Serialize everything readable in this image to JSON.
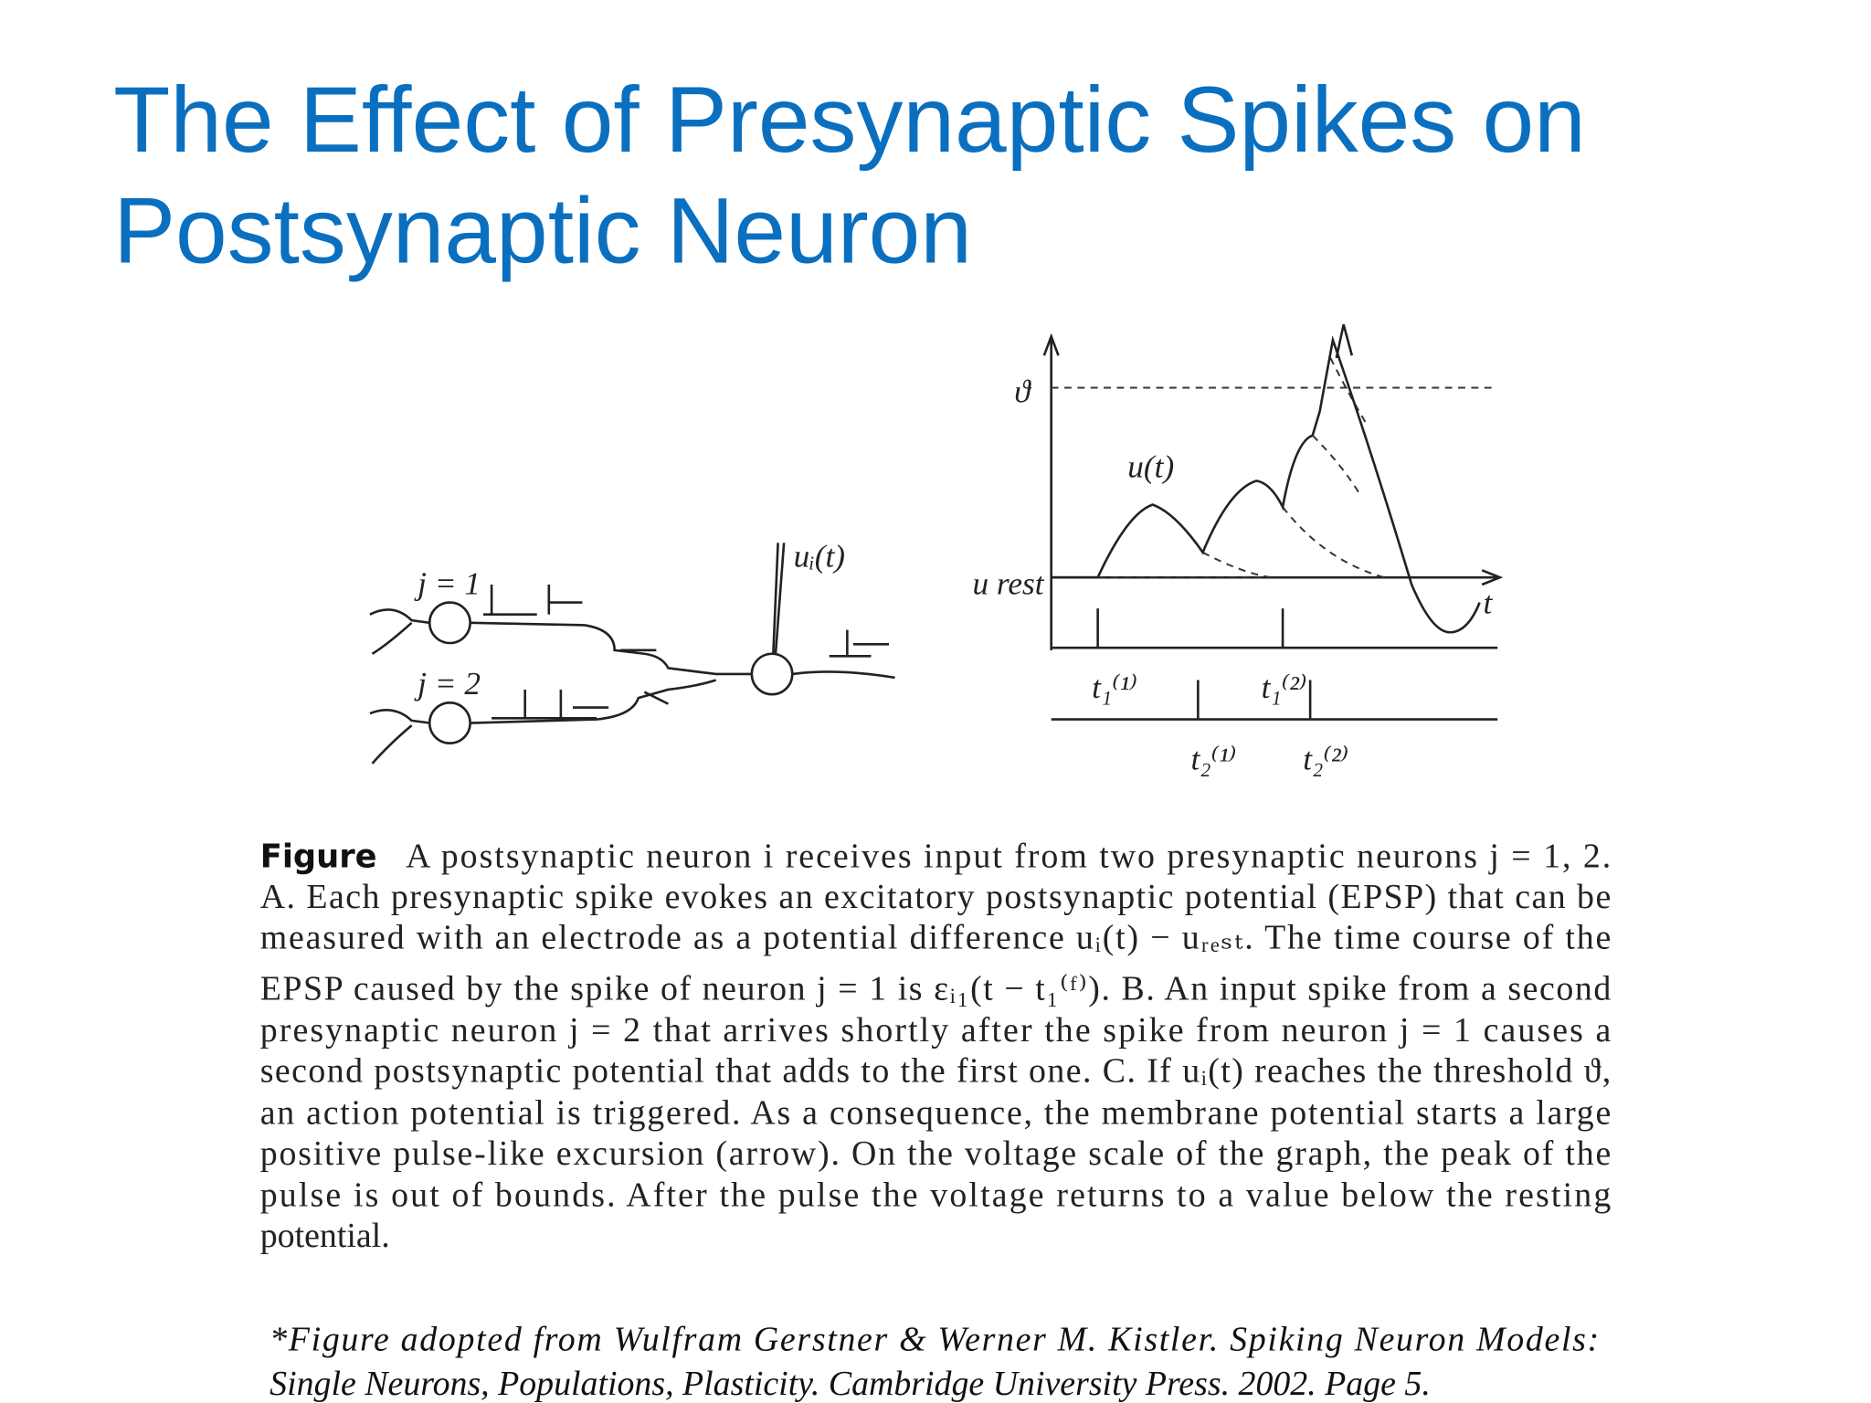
{
  "header": {
    "title_lines": [
      "The Effect of Presynaptic Spikes on",
      "Postsynaptic Neuron"
    ]
  },
  "figure": {
    "labels": {
      "j1": "j = 1",
      "j2": "j = 2",
      "electrode": "uᵢ(t)",
      "threshold": "ϑ",
      "potential": "u(t)",
      "rest": "u rest",
      "time": "t",
      "t11": "t₁⁽¹⁾",
      "t12": "t₁⁽²⁾",
      "t21": "t₂⁽¹⁾",
      "t22": "t₂⁽²⁾"
    }
  },
  "caption": {
    "label": "Figure",
    "lines": [
      "A postsynaptic neuron i receives input from two presynaptic neurons j = 1, 2.",
      "A. Each presynaptic spike evokes an excitatory postsynaptic potential (EPSP) that can be",
      "measured with an electrode as a potential difference uᵢ(t) − uᵣₑₛₜ. The time course of the",
      "EPSP caused by the spike of neuron j = 1 is εᵢ₁(t − t₁⁽ᶠ⁾). B. An input spike from a second",
      "presynaptic neuron j = 2 that arrives shortly after the spike from neuron j = 1 causes a",
      "second postsynaptic potential that adds to the first one. C. If uᵢ(t) reaches the threshold ϑ,",
      "an action potential is triggered. As a consequence, the membrane potential starts a large",
      "positive pulse-like excursion (arrow). On the voltage scale of the graph, the peak of the",
      "pulse is out of bounds. After the pulse the voltage returns to a value below the resting",
      "potential."
    ]
  },
  "citation": {
    "lines": [
      "*Figure adopted from Wulfram Gerstner & Werner M. Kistler. Spiking Neuron Models:",
      "Single Neurons, Populations, Plasticity. Cambridge University Press. 2002. Page 5."
    ]
  }
}
